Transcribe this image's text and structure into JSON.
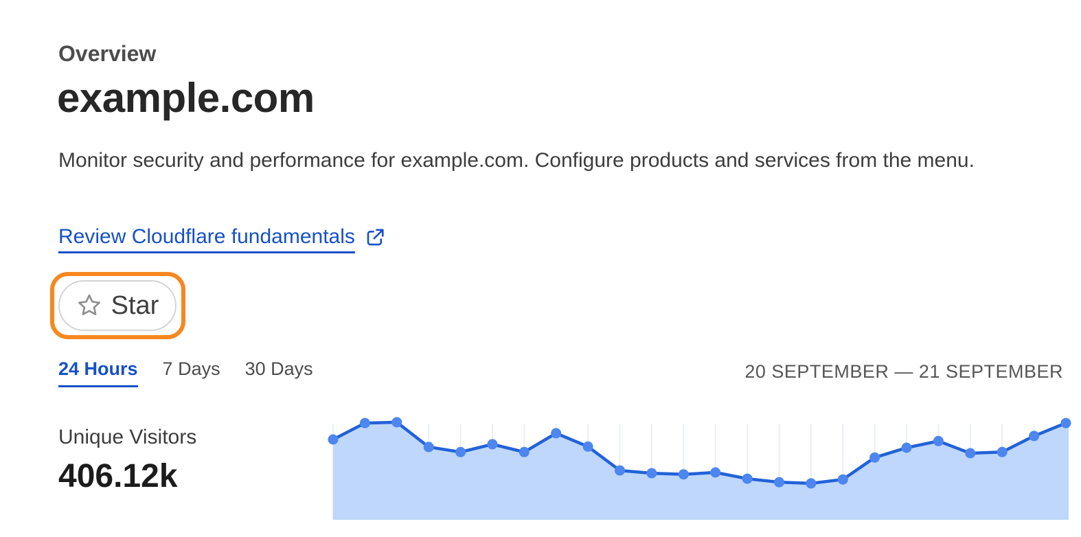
{
  "header": {
    "eyebrow": "Overview",
    "title": "example.com",
    "description": "Monitor security and performance for example.com. Configure products and services from the menu.",
    "link_label": "Review Cloudflare fundamentals"
  },
  "star_button": {
    "label": "Star"
  },
  "time_tabs": {
    "tabs": [
      {
        "label": "24 Hours",
        "active": true
      },
      {
        "label": "7 Days",
        "active": false
      },
      {
        "label": "30 Days",
        "active": false
      }
    ],
    "date_range": "20 SEPTEMBER — 21 SEPTEMBER"
  },
  "stat": {
    "label": "Unique Visitors",
    "value": "406.12k"
  },
  "icons": {
    "external_link": "external-link-icon",
    "star": "star-outline-icon"
  },
  "colors": {
    "accent_blue": "#1650c8",
    "annotation_orange": "#f6881f",
    "chart_line": "#2262d8",
    "chart_marker": "#4d86ee",
    "chart_fill": "#bed7fa",
    "chart_grid": "#e9eef8"
  },
  "chart_data": {
    "type": "area",
    "title": "Unique Visitors (24 Hours)",
    "total_label": "406.12k",
    "x_label": "time (hourly, 20 September — 21 September)",
    "y_label": "unique visitors (thousands, estimated from pixel heights; no axis labels shown)",
    "x": [
      0,
      1,
      2,
      3,
      4,
      5,
      6,
      7,
      8,
      9,
      10,
      11,
      12,
      13,
      14,
      15,
      16,
      17,
      18,
      19,
      20,
      21,
      22,
      23
    ],
    "values_k": [
      20.5,
      24.7,
      24.9,
      18.6,
      17.3,
      19.3,
      17.3,
      22.1,
      18.7,
      12.6,
      11.9,
      11.6,
      12.1,
      10.5,
      9.6,
      9.3,
      10.3,
      15.9,
      18.4,
      20.1,
      17.0,
      17.3,
      21.4,
      24.7
    ],
    "ylim": [
      0,
      27.5
    ],
    "grid": "vertical-line-at-each-point",
    "legend": "none",
    "markers": true
  }
}
